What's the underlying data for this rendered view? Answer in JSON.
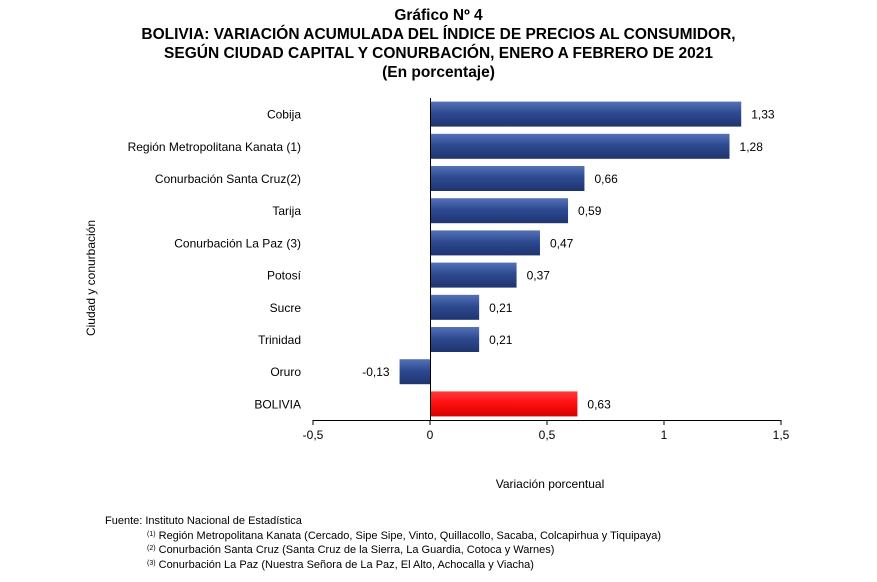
{
  "header": {
    "title": "Gráfico Nº 4",
    "line1": "BOLIVIA: VARIACIÓN ACUMULADA DEL ÍNDICE DE PRECIOS AL CONSUMIDOR,",
    "line2": "SEGÚN CIUDAD CAPITAL Y CONURBACIÓN, ENERO A FEBRERO DE 2021",
    "line3": "(En porcentaje)"
  },
  "chart_data": {
    "type": "bar",
    "orientation": "horizontal",
    "categories": [
      "Cobija",
      "Región Metropolitana Kanata (1)",
      "Conurbación Santa Cruz(2)",
      "Tarija",
      "Conurbación La Paz (3)",
      "Potosí",
      "Sucre",
      "Trinidad",
      "Oruro",
      "BOLIVIA"
    ],
    "values": [
      1.33,
      1.28,
      0.66,
      0.59,
      0.47,
      0.37,
      0.21,
      0.21,
      -0.13,
      0.63
    ],
    "value_labels": [
      "1,33",
      "1,28",
      "0,66",
      "0,59",
      "0,47",
      "0,37",
      "0,21",
      "0,21",
      "-0,13",
      "0,63"
    ],
    "colors": [
      "#2E4A91",
      "#2E4A91",
      "#2E4A91",
      "#2E4A91",
      "#2E4A91",
      "#2E4A91",
      "#2E4A91",
      "#2E4A91",
      "#2E4A91",
      "#FF1010"
    ],
    "xlabel": "Variación porcentual",
    "ylabel": "Ciudad y conurbación",
    "xlim": [
      -0.5,
      1.5
    ],
    "xticks": [
      -0.5,
      0,
      0.5,
      1,
      1.5
    ],
    "xtick_labels": [
      "-0,5",
      "0",
      "0,5",
      "1",
      "1,5"
    ],
    "grid": false,
    "legend": "none"
  },
  "footer": {
    "source": "Fuente: Instituto Nacional de Estadística",
    "notes": [
      {
        "mark": "(1)",
        "text": " Región Metropolitana Kanata (Cercado, Sipe Sipe, Vinto, Quillacollo, Sacaba, Colcapirhua y Tiquipaya)"
      },
      {
        "mark": "(2)",
        "text": " Conurbación Santa Cruz (Santa Cruz de la Sierra, La Guardia, Cotoca y Warnes)"
      },
      {
        "mark": "(3)",
        "text": " Conurbación La Paz (Nuestra Señora de La Paz, El Alto, Achocalla y Viacha)"
      }
    ]
  }
}
